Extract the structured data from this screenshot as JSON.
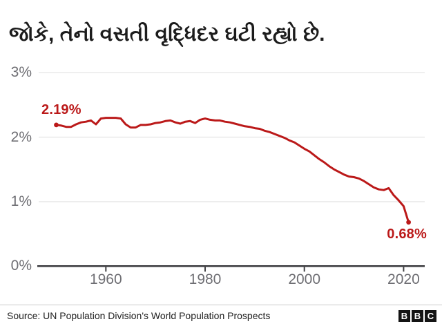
{
  "title": "જોકે, તેનો વસતી વૃદ્ધિદર ઘટી રહ્યો છે.",
  "colors": {
    "line": "#bb1919",
    "value_labels": "#bb1919",
    "grid": "#e7e7e7",
    "axis": "#404043",
    "axis_text": "#6e6e73",
    "title_text": "#1c1c1c"
  },
  "chart_data": {
    "type": "line",
    "title": "જોકે, તેનો વસતી વૃદ્ધિદર ઘટી રહ્યો છે.",
    "xlabel": "",
    "ylabel": "",
    "ylim": [
      0,
      3
    ],
    "xlim": [
      1946,
      2024.5
    ],
    "grid": "horizontal",
    "legend": "none",
    "yticks": [
      0,
      1,
      2,
      3
    ],
    "ytick_suffix": "%",
    "xticks": [
      1960,
      1980,
      2000,
      2020
    ],
    "start_label": "2.19%",
    "end_label": "0.68%",
    "x": [
      1950,
      1951,
      1952,
      1953,
      1954,
      1955,
      1956,
      1957,
      1958,
      1959,
      1960,
      1961,
      1962,
      1963,
      1964,
      1965,
      1966,
      1967,
      1968,
      1969,
      1970,
      1971,
      1972,
      1973,
      1974,
      1975,
      1976,
      1977,
      1978,
      1979,
      1980,
      1981,
      1982,
      1983,
      1984,
      1985,
      1986,
      1987,
      1988,
      1989,
      1990,
      1991,
      1992,
      1993,
      1994,
      1995,
      1996,
      1997,
      1998,
      1999,
      2000,
      2001,
      2002,
      2003,
      2004,
      2005,
      2006,
      2007,
      2008,
      2009,
      2010,
      2011,
      2012,
      2013,
      2014,
      2015,
      2016,
      2017,
      2018,
      2019,
      2020,
      2021
    ],
    "series": [
      {
        "name": "population-growth-rate-percent",
        "values": [
          2.19,
          2.18,
          2.16,
          2.16,
          2.2,
          2.23,
          2.24,
          2.26,
          2.2,
          2.29,
          2.3,
          2.3,
          2.3,
          2.29,
          2.2,
          2.15,
          2.15,
          2.19,
          2.19,
          2.2,
          2.22,
          2.23,
          2.25,
          2.26,
          2.23,
          2.21,
          2.24,
          2.25,
          2.22,
          2.27,
          2.29,
          2.27,
          2.26,
          2.26,
          2.24,
          2.23,
          2.21,
          2.19,
          2.17,
          2.16,
          2.14,
          2.13,
          2.1,
          2.08,
          2.05,
          2.02,
          1.99,
          1.95,
          1.92,
          1.87,
          1.82,
          1.78,
          1.72,
          1.66,
          1.61,
          1.55,
          1.5,
          1.46,
          1.42,
          1.39,
          1.38,
          1.36,
          1.32,
          1.27,
          1.22,
          1.19,
          1.18,
          1.21,
          1.1,
          1.02,
          0.93,
          0.68
        ]
      }
    ]
  },
  "footer": {
    "source": "Source: UN Population Division's World Population Prospects",
    "logo_letters": [
      "B",
      "B",
      "C"
    ]
  }
}
